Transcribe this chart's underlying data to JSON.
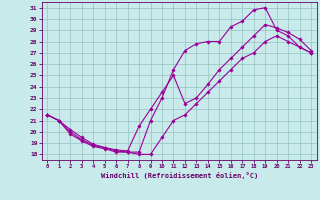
{
  "xlabel": "Windchill (Refroidissement éolien,°C)",
  "bg_color": "#c8eaea",
  "grid_color": "#a0c8c8",
  "line_color": "#990099",
  "xlim": [
    -0.5,
    23.5
  ],
  "ylim": [
    17.5,
    31.5
  ],
  "yticks": [
    18,
    19,
    20,
    21,
    22,
    23,
    24,
    25,
    26,
    27,
    28,
    29,
    30,
    31
  ],
  "xticks": [
    0,
    1,
    2,
    3,
    4,
    5,
    6,
    7,
    8,
    9,
    10,
    11,
    12,
    13,
    14,
    15,
    16,
    17,
    18,
    19,
    20,
    21,
    22,
    23
  ],
  "series": [
    {
      "x": [
        0,
        1,
        2,
        3,
        4,
        5,
        6,
        7,
        8,
        9,
        10,
        11,
        12,
        13,
        14,
        15,
        16,
        17,
        18,
        19,
        20,
        21,
        22,
        23
      ],
      "y": [
        21.5,
        21.0,
        19.8,
        19.2,
        18.7,
        18.5,
        18.2,
        18.2,
        18.2,
        21.0,
        23.0,
        25.5,
        27.2,
        27.8,
        28.0,
        28.0,
        29.3,
        29.8,
        30.8,
        31.0,
        29.0,
        28.5,
        27.5,
        27.0
      ]
    },
    {
      "x": [
        0,
        1,
        2,
        3,
        4,
        5,
        6,
        7,
        8,
        9,
        10,
        11,
        12,
        13,
        14,
        15,
        16,
        17,
        18,
        19,
        20,
        21,
        22,
        23
      ],
      "y": [
        21.5,
        21.0,
        20.0,
        19.3,
        18.8,
        18.6,
        18.4,
        18.3,
        20.5,
        22.0,
        23.5,
        25.0,
        22.5,
        23.0,
        24.2,
        25.5,
        26.5,
        27.5,
        28.5,
        29.5,
        29.2,
        28.8,
        28.2,
        27.2
      ]
    },
    {
      "x": [
        0,
        1,
        2,
        3,
        4,
        5,
        6,
        7,
        8,
        9,
        10,
        11,
        12,
        13,
        14,
        15,
        16,
        17,
        18,
        19,
        20,
        21,
        22,
        23
      ],
      "y": [
        21.5,
        21.0,
        20.2,
        19.5,
        18.9,
        18.6,
        18.3,
        18.2,
        18.0,
        18.0,
        19.5,
        21.0,
        21.5,
        22.5,
        23.5,
        24.5,
        25.5,
        26.5,
        27.0,
        28.0,
        28.5,
        28.0,
        27.5,
        27.0
      ]
    }
  ]
}
